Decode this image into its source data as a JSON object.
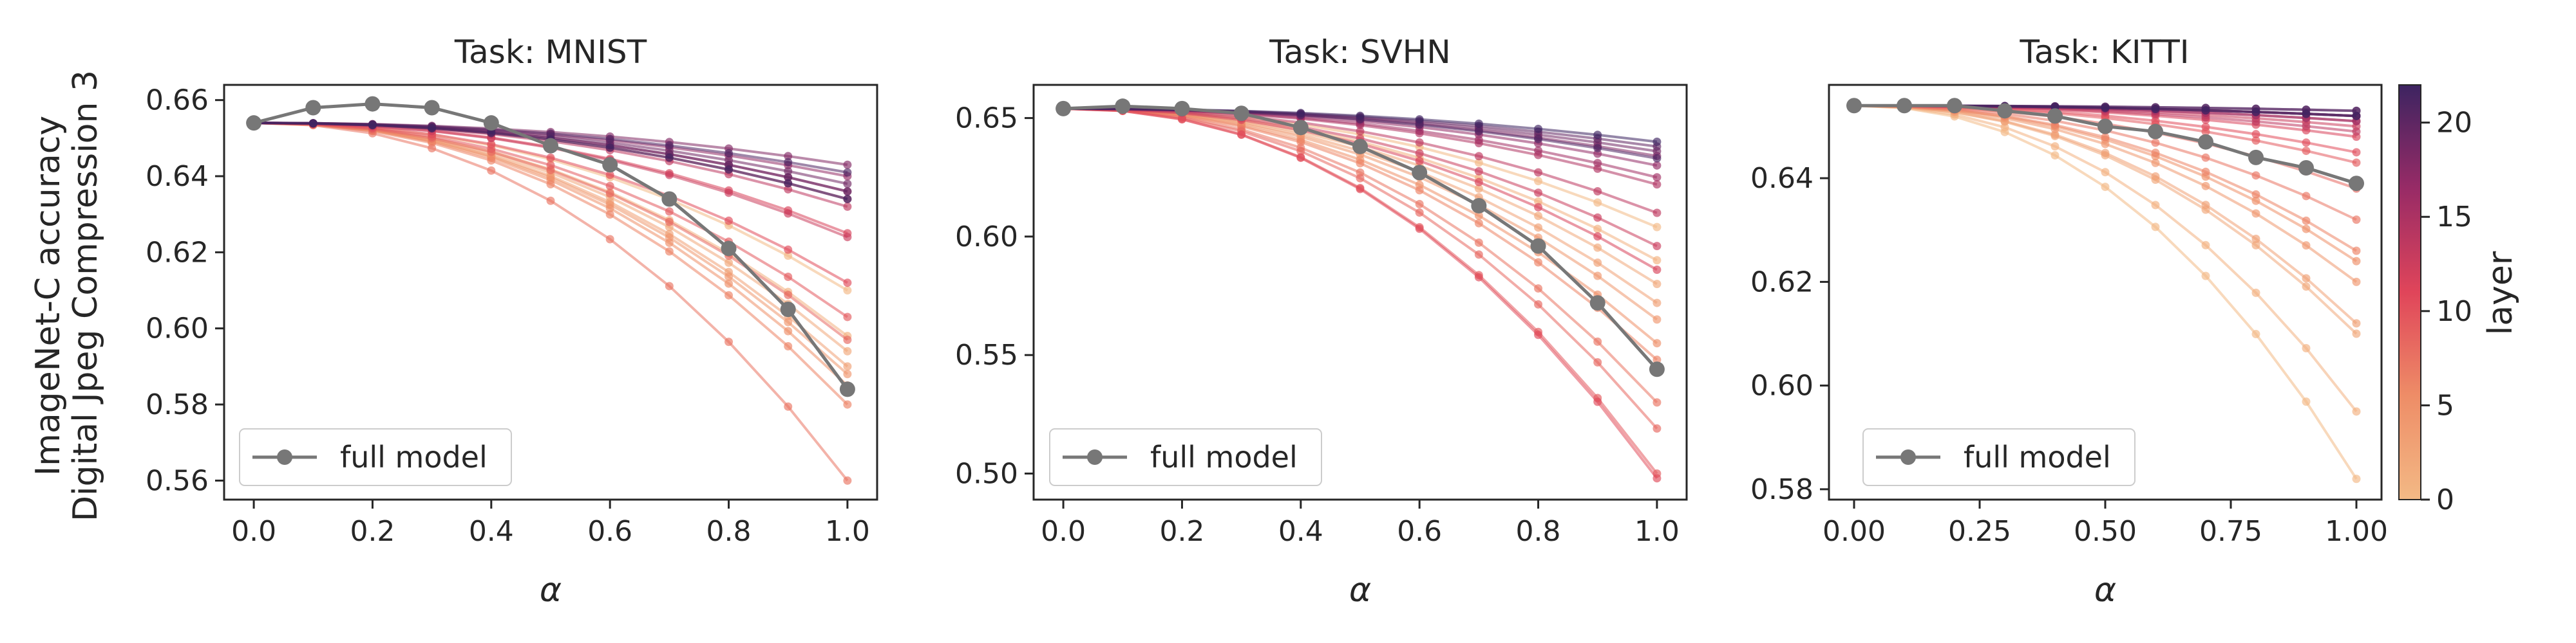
{
  "figure": {
    "ylabel_line1": "ImageNet-C accuracy",
    "ylabel_line2": "Digital Jpeg Compression 3",
    "colorbar": {
      "label": "layer",
      "ticks": [
        "0",
        "5",
        "10",
        "15",
        "20"
      ],
      "range": [
        0,
        22
      ],
      "colors": {
        "low": "#f3b985",
        "mid": "#e65a56",
        "high": "#3d2461"
      }
    },
    "full_model_color": "#777777"
  },
  "chart_data": [
    {
      "type": "line",
      "title": "Task: MNIST",
      "xlabel": "α",
      "ylabel": "ImageNet-C accuracy Digital Jpeg Compression 3",
      "legend_label": "full model",
      "legend_position": "lower-left",
      "x": [
        0,
        0.1,
        0.2,
        0.3,
        0.4,
        0.5,
        0.6,
        0.7,
        0.8,
        0.9,
        1.0
      ],
      "xlim": [
        -0.05,
        1.05
      ],
      "ylim": [
        0.555,
        0.664
      ],
      "xticks": [
        "0.0",
        "0.2",
        "0.4",
        "0.6",
        "0.8",
        "1.0"
      ],
      "xtick_values": [
        0,
        0.2,
        0.4,
        0.6,
        0.8,
        1.0
      ],
      "yticks": [
        "0.56",
        "0.58",
        "0.60",
        "0.62",
        "0.64",
        "0.66"
      ],
      "ytick_values": [
        0.56,
        0.58,
        0.6,
        0.62,
        0.64,
        0.66
      ],
      "full_model": [
        0.654,
        0.658,
        0.659,
        0.658,
        0.654,
        0.648,
        0.643,
        0.634,
        0.621,
        0.605,
        0.584
      ],
      "layer_endpoints": [
        0.61,
        0.598,
        0.594,
        0.59,
        0.588,
        0.585,
        0.58,
        0.56,
        0.597,
        0.603,
        0.612,
        0.625,
        0.624,
        0.632,
        0.634,
        0.636,
        0.64,
        0.643,
        0.638,
        0.636,
        0.641,
        0.634
      ]
    },
    {
      "type": "line",
      "title": "Task: SVHN",
      "xlabel": "α",
      "ylabel": "",
      "legend_label": "full model",
      "legend_position": "lower-left",
      "x": [
        0,
        0.1,
        0.2,
        0.3,
        0.4,
        0.5,
        0.6,
        0.7,
        0.8,
        0.9,
        1.0
      ],
      "xlim": [
        -0.05,
        1.05
      ],
      "ylim": [
        0.489,
        0.664
      ],
      "xticks": [
        "0.0",
        "0.2",
        "0.4",
        "0.6",
        "0.8",
        "1.0"
      ],
      "xtick_values": [
        0,
        0.2,
        0.4,
        0.6,
        0.8,
        1.0
      ],
      "yticks": [
        "0.50",
        "0.55",
        "0.60",
        "0.65"
      ],
      "ytick_values": [
        0.5,
        0.55,
        0.6,
        0.65
      ],
      "full_model": [
        0.654,
        0.655,
        0.654,
        0.652,
        0.646,
        0.638,
        0.627,
        0.613,
        0.596,
        0.572,
        0.544
      ],
      "layer_endpoints": [
        0.604,
        0.59,
        0.58,
        0.572,
        0.565,
        0.555,
        0.548,
        0.53,
        0.519,
        0.5,
        0.498,
        0.586,
        0.596,
        0.61,
        0.622,
        0.625,
        0.63,
        0.634,
        0.636,
        0.638,
        0.633,
        0.64
      ]
    },
    {
      "type": "line",
      "title": "Task: KITTI",
      "xlabel": "α",
      "ylabel": "",
      "legend_label": "full model",
      "legend_position": "lower-left",
      "x": [
        0,
        0.1,
        0.2,
        0.3,
        0.4,
        0.5,
        0.6,
        0.7,
        0.8,
        0.9,
        1.0
      ],
      "xlim": [
        -0.05,
        1.05
      ],
      "ylim": [
        0.578,
        0.658
      ],
      "xticks": [
        "0.00",
        "0.25",
        "0.50",
        "0.75",
        "1.00"
      ],
      "xtick_values": [
        0,
        0.25,
        0.5,
        0.75,
        1.0
      ],
      "yticks": [
        "0.58",
        "0.60",
        "0.62",
        "0.64"
      ],
      "ytick_values": [
        0.58,
        0.6,
        0.62,
        0.64
      ],
      "full_model": [
        0.654,
        0.654,
        0.654,
        0.653,
        0.652,
        0.65,
        0.649,
        0.647,
        0.644,
        0.642,
        0.639
      ],
      "layer_endpoints": [
        0.582,
        0.595,
        0.61,
        0.612,
        0.62,
        0.624,
        0.626,
        0.632,
        0.638,
        0.643,
        0.645,
        0.648,
        0.65,
        0.649,
        0.651,
        0.651,
        0.652,
        0.652,
        0.652,
        0.653,
        0.653,
        0.652
      ]
    }
  ]
}
